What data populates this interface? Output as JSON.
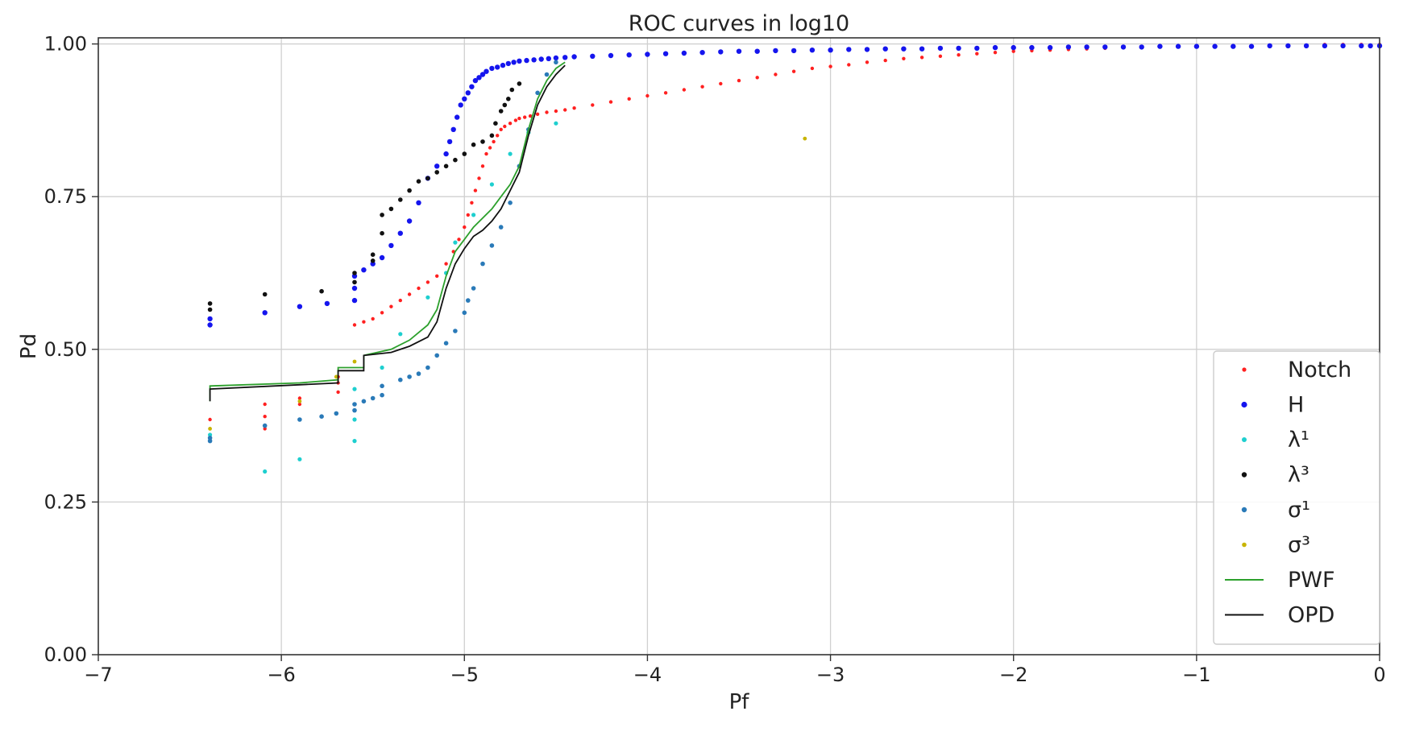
{
  "chart_data": {
    "type": "scatter",
    "title": "ROC curves in log10",
    "xlabel": "Pf",
    "ylabel": "Pd",
    "xlim": [
      -7,
      0
    ],
    "ylim": [
      0,
      1.01
    ],
    "x_ticks": [
      -7,
      -6,
      -5,
      -4,
      -3,
      -2,
      -1,
      0
    ],
    "x_tick_labels": [
      "−7",
      "−6",
      "−5",
      "−4",
      "−3",
      "−2",
      "−1",
      "0"
    ],
    "y_ticks": [
      0,
      0.25,
      0.5,
      0.75,
      1.0
    ],
    "y_tick_labels": [
      "0.00",
      "0.25",
      "0.50",
      "0.75",
      "1.00"
    ],
    "grid": true,
    "legend_position": "bottom-right",
    "series": [
      {
        "name": "Notch",
        "kind": "points",
        "color": "#ff2020",
        "marker_size": 2.2,
        "x": [
          -6.39,
          -6.09,
          -6.09,
          -6.09,
          -5.9,
          -5.9,
          -5.69,
          -5.69,
          -5.69,
          -5.6,
          -5.55,
          -5.5,
          -5.45,
          -5.4,
          -5.35,
          -5.3,
          -5.25,
          -5.2,
          -5.15,
          -5.1,
          -5.06,
          -5.03,
          -5.0,
          -4.98,
          -4.96,
          -4.94,
          -4.92,
          -4.9,
          -4.88,
          -4.86,
          -4.84,
          -4.82,
          -4.8,
          -4.78,
          -4.75,
          -4.72,
          -4.7,
          -4.67,
          -4.64,
          -4.6,
          -4.55,
          -4.5,
          -4.45,
          -4.4,
          -4.3,
          -4.2,
          -4.1,
          -4.0,
          -3.9,
          -3.8,
          -3.7,
          -3.6,
          -3.5,
          -3.4,
          -3.3,
          -3.2,
          -3.1,
          -3.0,
          -2.9,
          -2.8,
          -2.7,
          -2.6,
          -2.5,
          -2.4,
          -2.3,
          -2.2,
          -2.1,
          -2.0,
          -1.9,
          -1.8,
          -1.7,
          -1.6,
          -1.5,
          -1.4,
          -1.3,
          -1.2,
          -1.1,
          -1.0,
          -0.9,
          -0.8,
          -0.7,
          -0.6,
          -0.5,
          -0.4,
          -0.3,
          -0.2,
          -0.1,
          0.0
        ],
        "y": [
          0.385,
          0.37,
          0.39,
          0.41,
          0.41,
          0.42,
          0.43,
          0.445,
          0.455,
          0.54,
          0.545,
          0.55,
          0.56,
          0.57,
          0.58,
          0.59,
          0.6,
          0.61,
          0.62,
          0.64,
          0.66,
          0.68,
          0.7,
          0.72,
          0.74,
          0.76,
          0.78,
          0.8,
          0.82,
          0.83,
          0.84,
          0.85,
          0.86,
          0.865,
          0.87,
          0.875,
          0.878,
          0.88,
          0.882,
          0.885,
          0.888,
          0.89,
          0.892,
          0.895,
          0.9,
          0.905,
          0.91,
          0.915,
          0.92,
          0.925,
          0.93,
          0.935,
          0.94,
          0.945,
          0.95,
          0.955,
          0.96,
          0.963,
          0.966,
          0.97,
          0.973,
          0.976,
          0.978,
          0.98,
          0.982,
          0.984,
          0.986,
          0.988,
          0.989,
          0.99,
          0.991,
          0.992,
          0.993,
          0.994,
          0.995,
          0.995,
          0.996,
          0.996,
          0.997,
          0.997,
          0.997,
          0.998,
          0.998,
          0.998,
          0.999,
          0.999,
          0.999,
          0.999
        ]
      },
      {
        "name": "H",
        "kind": "points",
        "color": "#1515ee",
        "marker_size": 3.2,
        "x": [
          -6.39,
          -6.39,
          -6.09,
          -5.9,
          -5.75,
          -5.6,
          -5.6,
          -5.6,
          -5.55,
          -5.5,
          -5.45,
          -5.4,
          -5.35,
          -5.3,
          -5.25,
          -5.2,
          -5.15,
          -5.1,
          -5.08,
          -5.06,
          -5.04,
          -5.02,
          -5.0,
          -4.98,
          -4.96,
          -4.94,
          -4.92,
          -4.9,
          -4.88,
          -4.85,
          -4.82,
          -4.79,
          -4.76,
          -4.73,
          -4.7,
          -4.66,
          -4.62,
          -4.58,
          -4.54,
          -4.5,
          -4.45,
          -4.4,
          -4.3,
          -4.2,
          -4.1,
          -4.0,
          -3.9,
          -3.8,
          -3.7,
          -3.6,
          -3.5,
          -3.4,
          -3.3,
          -3.2,
          -3.1,
          -3.0,
          -2.9,
          -2.8,
          -2.7,
          -2.6,
          -2.5,
          -2.4,
          -2.3,
          -2.2,
          -2.1,
          -2.0,
          -1.9,
          -1.8,
          -1.7,
          -1.6,
          -1.5,
          -1.4,
          -1.3,
          -1.2,
          -1.1,
          -1.0,
          -0.9,
          -0.8,
          -0.7,
          -0.6,
          -0.5,
          -0.4,
          -0.3,
          -0.2,
          -0.1,
          -0.05,
          0.0
        ],
        "y": [
          0.54,
          0.55,
          0.56,
          0.57,
          0.575,
          0.58,
          0.6,
          0.62,
          0.63,
          0.64,
          0.65,
          0.67,
          0.69,
          0.71,
          0.74,
          0.78,
          0.8,
          0.82,
          0.84,
          0.86,
          0.88,
          0.9,
          0.91,
          0.92,
          0.93,
          0.94,
          0.945,
          0.95,
          0.955,
          0.96,
          0.962,
          0.965,
          0.968,
          0.97,
          0.972,
          0.973,
          0.974,
          0.975,
          0.976,
          0.977,
          0.978,
          0.979,
          0.98,
          0.981,
          0.982,
          0.983,
          0.984,
          0.985,
          0.986,
          0.987,
          0.988,
          0.988,
          0.989,
          0.989,
          0.99,
          0.99,
          0.991,
          0.991,
          0.992,
          0.992,
          0.992,
          0.993,
          0.993,
          0.993,
          0.994,
          0.994,
          0.994,
          0.994,
          0.995,
          0.995,
          0.995,
          0.995,
          0.995,
          0.996,
          0.996,
          0.996,
          0.996,
          0.996,
          0.996,
          0.997,
          0.997,
          0.997,
          0.997,
          0.997,
          0.997,
          0.997,
          0.997
        ]
      },
      {
        "name": "λ¹",
        "kind": "points",
        "color": "#1ecfcf",
        "marker_size": 2.6,
        "x": [
          -6.39,
          -6.09,
          -5.9,
          -5.6,
          -5.6,
          -5.6,
          -5.45,
          -5.35,
          -5.2,
          -5.1,
          -5.05,
          -4.95,
          -4.85,
          -4.75,
          -4.65,
          -4.5
        ],
        "y": [
          0.36,
          0.3,
          0.32,
          0.35,
          0.385,
          0.435,
          0.47,
          0.525,
          0.585,
          0.625,
          0.675,
          0.72,
          0.77,
          0.82,
          0.855,
          0.87
        ]
      },
      {
        "name": "λ³",
        "kind": "points",
        "color": "#111111",
        "marker_size": 2.8,
        "x": [
          -6.39,
          -6.39,
          -6.09,
          -5.78,
          -5.6,
          -5.6,
          -5.5,
          -5.5,
          -5.45,
          -5.45,
          -5.4,
          -5.35,
          -5.3,
          -5.25,
          -5.2,
          -5.15,
          -5.1,
          -5.05,
          -5.0,
          -4.95,
          -4.9,
          -4.85,
          -4.83,
          -4.8,
          -4.78,
          -4.76,
          -4.74,
          -4.7
        ],
        "y": [
          0.565,
          0.575,
          0.59,
          0.595,
          0.61,
          0.625,
          0.645,
          0.655,
          0.69,
          0.72,
          0.73,
          0.745,
          0.76,
          0.775,
          0.78,
          0.79,
          0.8,
          0.81,
          0.82,
          0.835,
          0.84,
          0.85,
          0.87,
          0.89,
          0.9,
          0.91,
          0.925,
          0.935
        ]
      },
      {
        "name": "σ¹",
        "kind": "points",
        "color": "#2a7ab8",
        "marker_size": 2.8,
        "x": [
          -6.39,
          -6.39,
          -6.09,
          -5.9,
          -5.78,
          -5.7,
          -5.6,
          -5.6,
          -5.55,
          -5.5,
          -5.45,
          -5.45,
          -5.35,
          -5.3,
          -5.25,
          -5.2,
          -5.15,
          -5.1,
          -5.05,
          -5.0,
          -4.98,
          -4.95,
          -4.9,
          -4.85,
          -4.8,
          -4.75,
          -4.7,
          -4.65,
          -4.6,
          -4.55,
          -4.5
        ],
        "y": [
          0.35,
          0.355,
          0.375,
          0.385,
          0.39,
          0.395,
          0.4,
          0.41,
          0.415,
          0.42,
          0.425,
          0.44,
          0.45,
          0.455,
          0.46,
          0.47,
          0.49,
          0.51,
          0.53,
          0.56,
          0.58,
          0.6,
          0.64,
          0.67,
          0.7,
          0.74,
          0.8,
          0.86,
          0.92,
          0.95,
          0.97
        ]
      },
      {
        "name": "σ³",
        "kind": "points",
        "color": "#c8b400",
        "marker_size": 2.4,
        "x": [
          -6.39,
          -5.9,
          -5.7,
          -5.6,
          -3.14
        ],
        "y": [
          0.37,
          0.415,
          0.455,
          0.48,
          0.845
        ]
      },
      {
        "name": "PWF",
        "kind": "line",
        "color": "#2ca02c",
        "x": [
          -6.39,
          -6.39,
          -5.9,
          -5.69,
          -5.69,
          -5.55,
          -5.55,
          -5.4,
          -5.3,
          -5.2,
          -5.15,
          -5.1,
          -5.05,
          -5.0,
          -4.95,
          -4.9,
          -4.85,
          -4.8,
          -4.75,
          -4.7,
          -4.65,
          -4.6,
          -4.55,
          -4.5,
          -4.45
        ],
        "y": [
          0.415,
          0.44,
          0.445,
          0.45,
          0.47,
          0.47,
          0.49,
          0.5,
          0.515,
          0.54,
          0.565,
          0.62,
          0.66,
          0.68,
          0.7,
          0.715,
          0.73,
          0.75,
          0.77,
          0.8,
          0.86,
          0.91,
          0.94,
          0.96,
          0.97
        ]
      },
      {
        "name": "OPD",
        "kind": "line",
        "color": "#111111",
        "x": [
          -6.39,
          -6.39,
          -5.69,
          -5.69,
          -5.55,
          -5.55,
          -5.4,
          -5.3,
          -5.2,
          -5.15,
          -5.1,
          -5.05,
          -5.0,
          -4.95,
          -4.9,
          -4.85,
          -4.8,
          -4.75,
          -4.7,
          -4.65,
          -4.6,
          -4.55,
          -4.5,
          -4.45
        ],
        "y": [
          0.415,
          0.435,
          0.445,
          0.465,
          0.465,
          0.49,
          0.495,
          0.505,
          0.52,
          0.545,
          0.6,
          0.64,
          0.665,
          0.685,
          0.695,
          0.71,
          0.73,
          0.76,
          0.79,
          0.85,
          0.9,
          0.93,
          0.95,
          0.965
        ]
      }
    ],
    "legend_labels": {
      "notch": "Notch",
      "h": "H",
      "lambda1": "λ¹",
      "lambda3": "λ³",
      "sigma1": "σ¹",
      "sigma3": "σ³",
      "pwf": "PWF",
      "opd": "OPD"
    }
  }
}
